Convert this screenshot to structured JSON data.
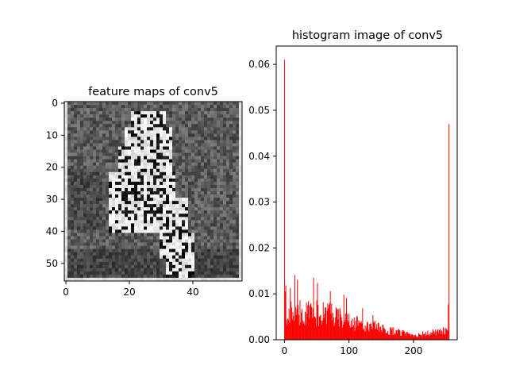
{
  "chart_data": [
    {
      "type": "heatmap",
      "title": "feature maps of conv5",
      "rows": 56,
      "cols": 56,
      "xlim": [
        -0.5,
        55.5
      ],
      "ylim": [
        55.5,
        -0.5
      ],
      "x_ticks": [
        0,
        20,
        40
      ],
      "y_ticks": [
        0,
        10,
        20,
        30,
        40,
        50
      ],
      "colormap": "gray",
      "description_of_content": "grayscale activation map showing a bright, high-contrast silhouette on a textured mid-gray background"
    },
    {
      "type": "bar",
      "title": "histogram image of conv5",
      "bins": 256,
      "bin_range": [
        0,
        255
      ],
      "xlim": [
        -12.75,
        267.75
      ],
      "ylim": [
        0,
        0.064
      ],
      "x_ticks": [
        0,
        100,
        200
      ],
      "y_ticks": [
        0.0,
        0.01,
        0.02,
        0.03,
        0.04,
        0.05,
        0.06
      ],
      "y_tick_labels": [
        "0.00",
        "0.01",
        "0.02",
        "0.03",
        "0.04",
        "0.05",
        "0.06"
      ],
      "color": "#ff0000",
      "notable_values": [
        {
          "x": 0,
          "y": 0.061
        },
        {
          "x": 255,
          "y": 0.047
        },
        {
          "x": 254,
          "y": 0.0077
        },
        {
          "x": 1,
          "y": 0.0105
        }
      ],
      "profile": "mostly 0.002-0.012 for low values, decreasing to about 0.001 near 200, rising slightly near 250"
    }
  ]
}
